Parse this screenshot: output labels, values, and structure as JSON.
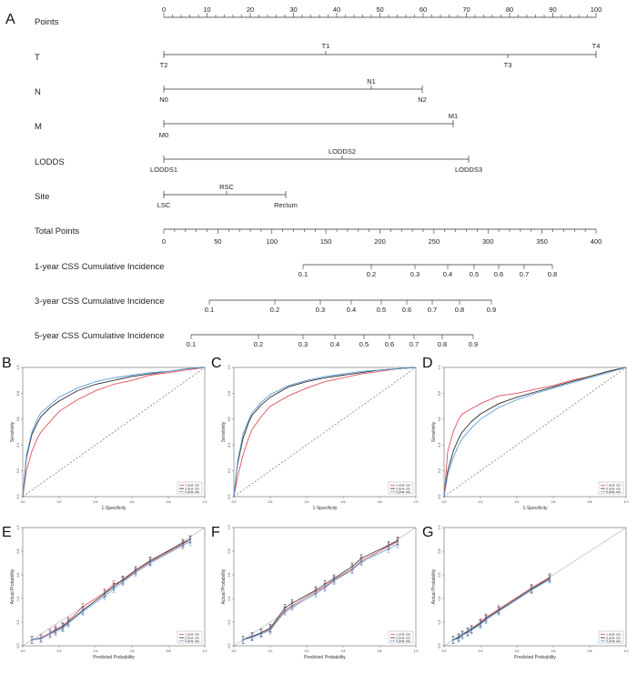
{
  "panel_labels": [
    "A",
    "B",
    "C",
    "D",
    "E",
    "F",
    "G"
  ],
  "nomogram": {
    "points": {
      "label": "Points",
      "ticks": [
        "0",
        "10",
        "20",
        "30",
        "40",
        "50",
        "60",
        "70",
        "80",
        "90",
        "100"
      ]
    },
    "t": {
      "label": "T",
      "cats": [
        "T2",
        "T1",
        "T3",
        "T4"
      ]
    },
    "n": {
      "label": "N",
      "cats": [
        "N0",
        "N1",
        "N2"
      ]
    },
    "m": {
      "label": "M",
      "cats": [
        "M0",
        "M1"
      ]
    },
    "lodds": {
      "label": "LODDS",
      "cats": [
        "LODDS1",
        "LODDS2",
        "LODDS3"
      ]
    },
    "site": {
      "label": "Site",
      "cats": [
        "LSC",
        "RSC",
        "Rectum"
      ]
    },
    "total": {
      "label": "Total Points",
      "ticks": [
        "0",
        "50",
        "100",
        "150",
        "200",
        "250",
        "300",
        "350",
        "400"
      ]
    },
    "ci1": {
      "label": "1-year CSS Cumulative Incidence",
      "ticks": [
        "0.1",
        "0.2",
        "0.3",
        "0.4",
        "0.5",
        "0.6",
        "0.7",
        "0.8"
      ]
    },
    "ci3": {
      "label": "3-year CSS Cumulative Incidence",
      "ticks": [
        "0.1",
        "0.2",
        "0.3",
        "0.4",
        "0.5",
        "0.6",
        "0.7",
        "0.8",
        "0.9"
      ]
    },
    "ci5": {
      "label": "5-year CSS Cumulative Incidence",
      "ticks": [
        "0.1",
        "0.2",
        "0.3",
        "0.4",
        "0.5",
        "0.6",
        "0.7",
        "0.8",
        "0.9"
      ]
    }
  },
  "roc_common": {
    "xlabel": "1-Specificity",
    "ylabel": "Sensitivity",
    "xticks": [
      "0.0",
      "0.2",
      "0.4",
      "0.6",
      "0.8",
      "1.0"
    ],
    "yticks": [
      "0.0",
      "0.2",
      "0.4",
      "0.6",
      "0.8",
      "1.0"
    ],
    "legend": [
      "1 year css",
      "3 year css",
      "5 year css"
    ]
  },
  "cal_common": {
    "xlabel": "Predicted Probability",
    "ylabel": "Actual Probability",
    "xticks": [
      "0.0",
      "0.2",
      "0.4",
      "0.6",
      "0.8",
      "1.0"
    ],
    "yticks": [
      "0.0",
      "0.2",
      "0.4",
      "0.6",
      "0.8",
      "1.0"
    ],
    "legend": [
      "1 year css",
      "3 year css",
      "5 year css"
    ]
  },
  "colors": {
    "y1": "#e0505a",
    "y3": "#2b2b2b",
    "y5": "#5b9bd5",
    "diag": "#555555",
    "line": "#333333"
  },
  "chart_data": [
    {
      "type": "line",
      "panel": "B",
      "xlabel": "1-Specificity",
      "ylabel": "Sensitivity",
      "xlim": [
        0,
        1
      ],
      "ylim": [
        0,
        1
      ],
      "legend": "bottom-right",
      "series": [
        {
          "name": "1 year css",
          "x": [
            0,
            0.02,
            0.05,
            0.08,
            0.1,
            0.15,
            0.2,
            0.3,
            0.4,
            0.5,
            0.6,
            0.7,
            0.8,
            0.9,
            1.0
          ],
          "values": [
            0,
            0.2,
            0.35,
            0.45,
            0.5,
            0.58,
            0.66,
            0.75,
            0.82,
            0.87,
            0.9,
            0.94,
            0.96,
            0.98,
            1.0
          ]
        },
        {
          "name": "3 year css",
          "x": [
            0,
            0.02,
            0.05,
            0.08,
            0.1,
            0.15,
            0.2,
            0.3,
            0.4,
            0.5,
            0.6,
            0.7,
            0.8,
            0.9,
            1.0
          ],
          "values": [
            0,
            0.3,
            0.48,
            0.57,
            0.62,
            0.69,
            0.74,
            0.82,
            0.87,
            0.9,
            0.93,
            0.95,
            0.97,
            0.99,
            1.0
          ]
        },
        {
          "name": "5 year css",
          "x": [
            0,
            0.02,
            0.05,
            0.08,
            0.1,
            0.15,
            0.2,
            0.3,
            0.4,
            0.5,
            0.6,
            0.7,
            0.8,
            0.9,
            1.0
          ],
          "values": [
            0,
            0.32,
            0.5,
            0.6,
            0.65,
            0.71,
            0.77,
            0.84,
            0.89,
            0.92,
            0.94,
            0.96,
            0.97,
            0.99,
            1.0
          ]
        }
      ]
    },
    {
      "type": "line",
      "panel": "C",
      "xlabel": "1-Specificity",
      "ylabel": "Sensitivity",
      "xlim": [
        0,
        1
      ],
      "ylim": [
        0,
        1
      ],
      "legend": "bottom-right",
      "series": [
        {
          "name": "1 year css",
          "x": [
            0,
            0.02,
            0.05,
            0.08,
            0.1,
            0.15,
            0.2,
            0.3,
            0.4,
            0.5,
            0.6,
            0.7,
            0.8,
            0.9,
            1.0
          ],
          "values": [
            0,
            0.15,
            0.32,
            0.45,
            0.52,
            0.62,
            0.7,
            0.78,
            0.84,
            0.89,
            0.92,
            0.95,
            0.97,
            0.99,
            1.0
          ]
        },
        {
          "name": "3 year css",
          "x": [
            0,
            0.02,
            0.05,
            0.08,
            0.1,
            0.15,
            0.2,
            0.3,
            0.4,
            0.5,
            0.6,
            0.7,
            0.8,
            0.9,
            1.0
          ],
          "values": [
            0,
            0.25,
            0.45,
            0.57,
            0.63,
            0.71,
            0.77,
            0.85,
            0.89,
            0.92,
            0.94,
            0.96,
            0.98,
            0.99,
            1.0
          ]
        },
        {
          "name": "5 year css",
          "x": [
            0,
            0.02,
            0.05,
            0.08,
            0.1,
            0.15,
            0.2,
            0.3,
            0.4,
            0.5,
            0.6,
            0.7,
            0.8,
            0.9,
            1.0
          ],
          "values": [
            0,
            0.27,
            0.48,
            0.59,
            0.65,
            0.73,
            0.79,
            0.86,
            0.9,
            0.93,
            0.95,
            0.97,
            0.98,
            0.99,
            1.0
          ]
        }
      ]
    },
    {
      "type": "line",
      "panel": "D",
      "xlabel": "1-Specificity",
      "ylabel": "Sensitivity",
      "xlim": [
        0,
        1
      ],
      "ylim": [
        0,
        1
      ],
      "legend": "bottom-right",
      "series": [
        {
          "name": "1 year css",
          "x": [
            0,
            0.02,
            0.05,
            0.08,
            0.1,
            0.15,
            0.2,
            0.3,
            0.4,
            0.5,
            0.6,
            0.7,
            0.8,
            0.9,
            1.0
          ],
          "values": [
            0,
            0.35,
            0.5,
            0.6,
            0.64,
            0.68,
            0.72,
            0.78,
            0.8,
            0.83,
            0.86,
            0.9,
            0.93,
            0.97,
            1.0
          ]
        },
        {
          "name": "3 year css",
          "x": [
            0,
            0.02,
            0.05,
            0.08,
            0.1,
            0.15,
            0.2,
            0.3,
            0.4,
            0.5,
            0.6,
            0.7,
            0.8,
            0.9,
            1.0
          ],
          "values": [
            0,
            0.2,
            0.35,
            0.45,
            0.5,
            0.58,
            0.64,
            0.72,
            0.77,
            0.81,
            0.85,
            0.89,
            0.93,
            0.97,
            1.0
          ]
        },
        {
          "name": "5 year css",
          "x": [
            0,
            0.02,
            0.05,
            0.08,
            0.1,
            0.15,
            0.2,
            0.3,
            0.4,
            0.5,
            0.6,
            0.7,
            0.8,
            0.9,
            1.0
          ],
          "values": [
            0,
            0.17,
            0.3,
            0.4,
            0.45,
            0.53,
            0.6,
            0.69,
            0.75,
            0.8,
            0.84,
            0.88,
            0.92,
            0.96,
            1.0
          ]
        }
      ]
    },
    {
      "type": "line",
      "panel": "E",
      "xlabel": "Predicted Probability",
      "ylabel": "Actual Probability",
      "xlim": [
        0,
        1
      ],
      "ylim": [
        0,
        1
      ],
      "legend": "bottom-right",
      "series": [
        {
          "name": "1 year css",
          "x": [
            0.05,
            0.1,
            0.15,
            0.18,
            0.22,
            0.25,
            0.33,
            0.45,
            0.5,
            0.55,
            0.62,
            0.7,
            0.88,
            0.92
          ],
          "values": [
            0.05,
            0.07,
            0.11,
            0.14,
            0.17,
            0.21,
            0.33,
            0.45,
            0.52,
            0.55,
            0.63,
            0.71,
            0.86,
            0.9
          ]
        },
        {
          "name": "3 year css",
          "x": [
            0.05,
            0.1,
            0.15,
            0.18,
            0.22,
            0.25,
            0.33,
            0.45,
            0.5,
            0.55,
            0.62,
            0.7,
            0.88,
            0.92
          ],
          "values": [
            0.05,
            0.06,
            0.1,
            0.13,
            0.16,
            0.2,
            0.3,
            0.44,
            0.5,
            0.56,
            0.64,
            0.72,
            0.87,
            0.9
          ]
        },
        {
          "name": "5 year css",
          "x": [
            0.05,
            0.1,
            0.15,
            0.18,
            0.22,
            0.25,
            0.33,
            0.45,
            0.5,
            0.55,
            0.62,
            0.7,
            0.88,
            0.92
          ],
          "values": [
            0.05,
            0.06,
            0.1,
            0.12,
            0.15,
            0.19,
            0.29,
            0.42,
            0.48,
            0.54,
            0.62,
            0.7,
            0.85,
            0.88
          ]
        }
      ]
    },
    {
      "type": "line",
      "panel": "F",
      "xlabel": "Predicted Probability",
      "ylabel": "Actual Probability",
      "xlim": [
        0,
        1
      ],
      "ylim": [
        0,
        1
      ],
      "legend": "bottom-right",
      "series": [
        {
          "name": "1 year css",
          "x": [
            0.05,
            0.1,
            0.15,
            0.2,
            0.28,
            0.32,
            0.45,
            0.5,
            0.55,
            0.65,
            0.7,
            0.85,
            0.9
          ],
          "values": [
            0.05,
            0.08,
            0.11,
            0.14,
            0.3,
            0.34,
            0.46,
            0.5,
            0.56,
            0.65,
            0.72,
            0.84,
            0.88
          ]
        },
        {
          "name": "3 year css",
          "x": [
            0.05,
            0.1,
            0.15,
            0.2,
            0.28,
            0.32,
            0.45,
            0.5,
            0.55,
            0.65,
            0.7,
            0.85,
            0.9
          ],
          "values": [
            0.05,
            0.08,
            0.11,
            0.15,
            0.32,
            0.36,
            0.47,
            0.52,
            0.57,
            0.67,
            0.74,
            0.85,
            0.89
          ]
        },
        {
          "name": "5 year css",
          "x": [
            0.05,
            0.1,
            0.15,
            0.2,
            0.28,
            0.32,
            0.45,
            0.5,
            0.55,
            0.65,
            0.7,
            0.85,
            0.9
          ],
          "values": [
            0.05,
            0.07,
            0.1,
            0.13,
            0.29,
            0.33,
            0.44,
            0.49,
            0.55,
            0.64,
            0.71,
            0.82,
            0.86
          ]
        }
      ]
    },
    {
      "type": "line",
      "panel": "G",
      "xlabel": "Predicted Probability",
      "ylabel": "Actual Probability",
      "xlim": [
        0,
        1
      ],
      "ylim": [
        0,
        1
      ],
      "legend": "bottom-right",
      "series": [
        {
          "name": "1 year css",
          "x": [
            0.05,
            0.08,
            0.1,
            0.13,
            0.15,
            0.2,
            0.23,
            0.3,
            0.48,
            0.58
          ],
          "values": [
            0.05,
            0.07,
            0.1,
            0.12,
            0.14,
            0.2,
            0.24,
            0.31,
            0.49,
            0.58
          ]
        },
        {
          "name": "3 year css",
          "x": [
            0.05,
            0.08,
            0.1,
            0.13,
            0.15,
            0.2,
            0.23,
            0.3,
            0.48,
            0.58
          ],
          "values": [
            0.05,
            0.07,
            0.09,
            0.12,
            0.14,
            0.19,
            0.23,
            0.3,
            0.48,
            0.57
          ]
        },
        {
          "name": "5 year css",
          "x": [
            0.05,
            0.08,
            0.1,
            0.13,
            0.15,
            0.2,
            0.23,
            0.3,
            0.48,
            0.58
          ],
          "values": [
            0.05,
            0.06,
            0.09,
            0.11,
            0.13,
            0.18,
            0.22,
            0.29,
            0.47,
            0.56
          ]
        }
      ]
    }
  ]
}
